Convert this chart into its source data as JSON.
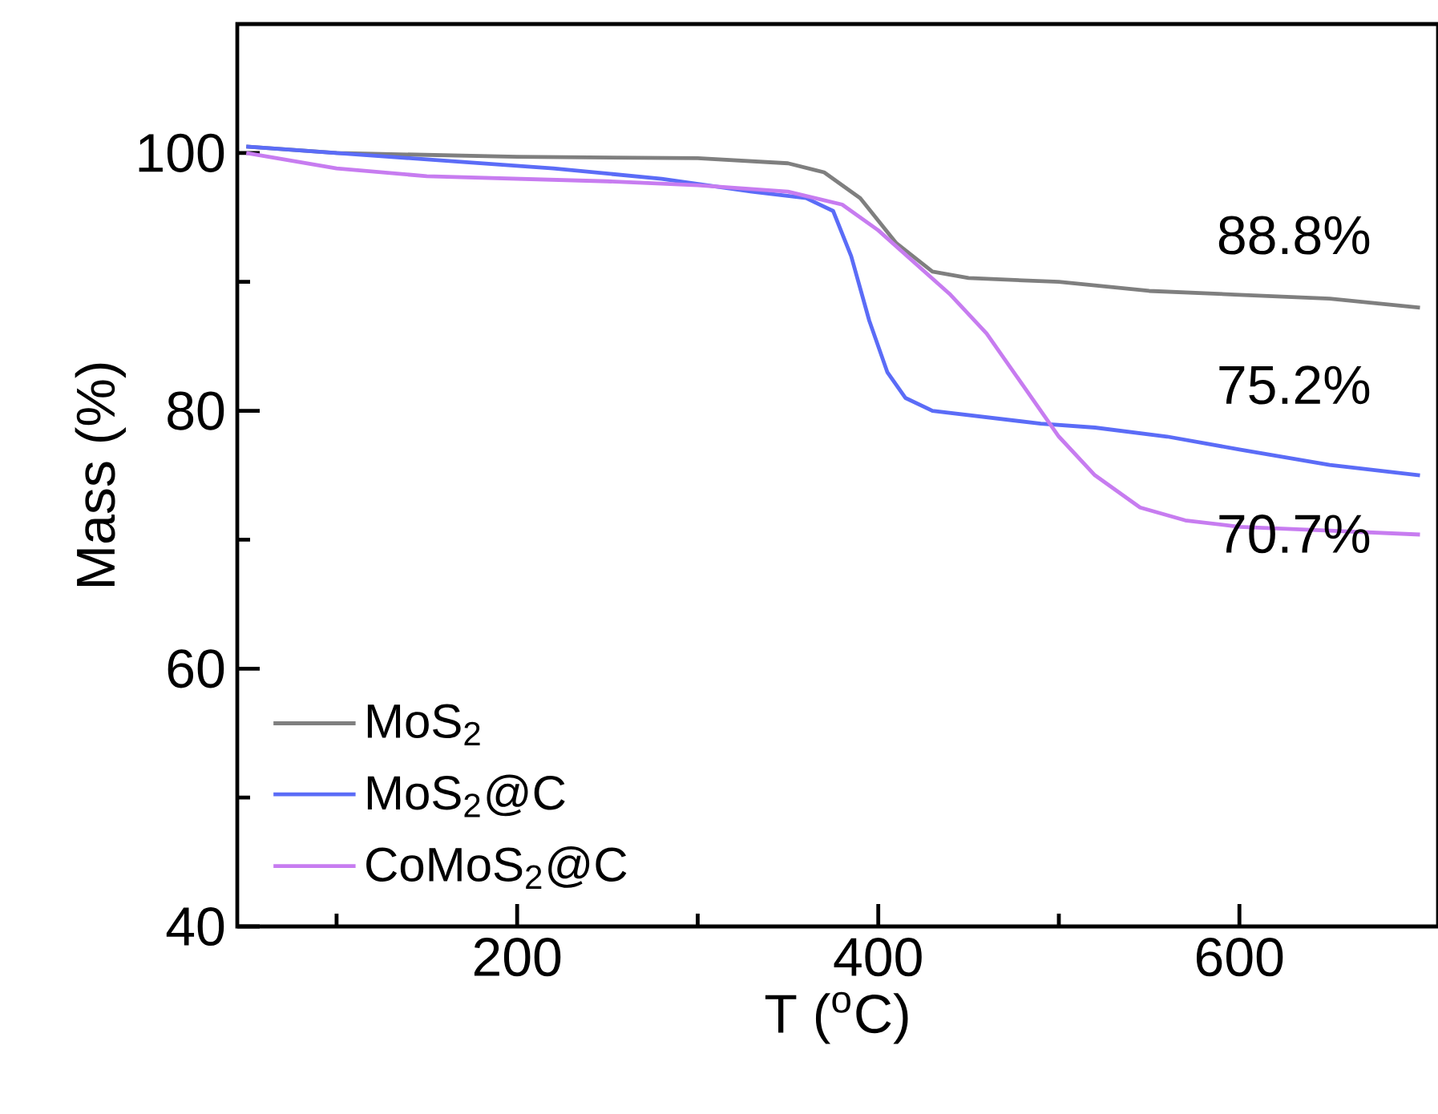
{
  "chart_data": {
    "type": "line",
    "xlabel": "T ($^{o}$C)",
    "ylabel": "Mass (%)",
    "xlim": [
      45,
      710
    ],
    "ylim": [
      40,
      110
    ],
    "xticks": [
      {
        "value": 100,
        "label": null
      },
      200,
      {
        "value": 300,
        "label": null
      },
      400,
      {
        "value": 500,
        "label": null
      },
      600
    ],
    "yticks": [
      40,
      {
        "value": 50,
        "label": null
      },
      60,
      {
        "value": 70,
        "label": null
      },
      80,
      {
        "value": 90,
        "label": null
      },
      100
    ],
    "legend": "bottom left",
    "line_style": "solid",
    "marker": "none",
    "annotations": [
      "88.8%",
      "75.2%",
      "70.7%"
    ],
    "series": [
      {
        "name": "MoS$_{2}$",
        "color": "#7f7f7f",
        "x": [
          50,
          100,
          200,
          300,
          350,
          370,
          390,
          410,
          430,
          450,
          500,
          550,
          600,
          650,
          700
        ],
        "values": [
          100.5,
          100,
          99.7,
          99.6,
          99.2,
          98.5,
          96.5,
          93,
          90.8,
          90.3,
          90,
          89.3,
          89,
          88.7,
          88
        ]
      },
      {
        "name": "MoS$_{2}$@C",
        "color": "#5b6cf7",
        "x": [
          50,
          150,
          220,
          280,
          330,
          360,
          375,
          385,
          395,
          405,
          415,
          430,
          460,
          490,
          520,
          560,
          600,
          650,
          700
        ],
        "values": [
          100.5,
          99.5,
          98.8,
          98,
          97,
          96.5,
          95.5,
          92,
          87,
          83,
          81,
          80,
          79.5,
          79,
          78.7,
          78,
          77,
          75.8,
          75
        ]
      },
      {
        "name": "CoMoS$_{2}$@C",
        "color": "#c77cf0",
        "x": [
          50,
          100,
          150,
          250,
          300,
          350,
          380,
          400,
          420,
          440,
          460,
          480,
          500,
          520,
          545,
          570,
          600,
          650,
          700
        ],
        "values": [
          100,
          98.8,
          98.2,
          97.8,
          97.5,
          97,
          96,
          94,
          91.5,
          89,
          86,
          82,
          78,
          75,
          72.5,
          71.5,
          71,
          70.7,
          70.4
        ]
      }
    ]
  }
}
